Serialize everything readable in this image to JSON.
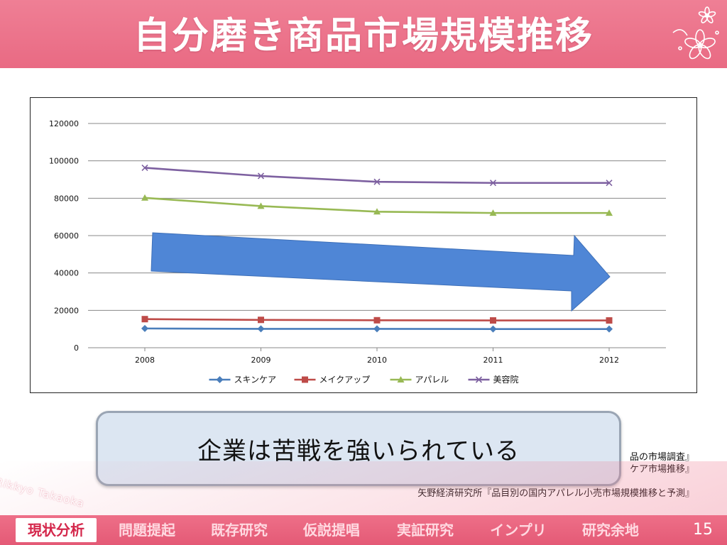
{
  "slide": {
    "title": "自分磨き商品市場規模推移",
    "page_number": "15",
    "author": "Rikkyo Takaoka",
    "callout": "企業は苦戦を強いられている"
  },
  "sources": [
    "品の市場調査』",
    "ケア市場推移』",
    "矢野経済研究所『品目別の国内アパレル小売市場規模推移と予測』"
  ],
  "nav": {
    "items": [
      {
        "label": "現状分析",
        "active": true
      },
      {
        "label": "問題提起",
        "active": false
      },
      {
        "label": "既存研究",
        "active": false
      },
      {
        "label": "仮説提唱",
        "active": false
      },
      {
        "label": "実証研究",
        "active": false
      },
      {
        "label": "インプリ",
        "active": false
      },
      {
        "label": "研究余地",
        "active": false
      }
    ]
  },
  "colors": {
    "title_band": "#e96a83",
    "arrow": "#4f86d6",
    "callout_fill": "#dce6f2"
  },
  "chart_data": {
    "type": "line",
    "x": [
      "2008",
      "2009",
      "2010",
      "2011",
      "2012"
    ],
    "ylim": [
      0,
      120000
    ],
    "yticks": [
      0,
      20000,
      40000,
      60000,
      80000,
      100000,
      120000
    ],
    "grid": true,
    "legend_position": "bottom",
    "series": [
      {
        "name": "スキンケア",
        "color": "#4a7ebb",
        "marker": "diamond",
        "values": [
          10300,
          10100,
          10100,
          10000,
          10000
        ]
      },
      {
        "name": "メイクアップ",
        "color": "#be4b48",
        "marker": "square",
        "values": [
          15300,
          14900,
          14700,
          14600,
          14600
        ]
      },
      {
        "name": "アパレル",
        "color": "#98b954",
        "marker": "triangle",
        "values": [
          80200,
          75800,
          72800,
          72100,
          72100
        ]
      },
      {
        "name": "美容院",
        "color": "#7d60a0",
        "marker": "x",
        "values": [
          96300,
          91900,
          88800,
          88200,
          88200
        ]
      }
    ],
    "annotation": {
      "type": "arrow",
      "direction": "down-right",
      "color": "#4f86d6"
    }
  }
}
